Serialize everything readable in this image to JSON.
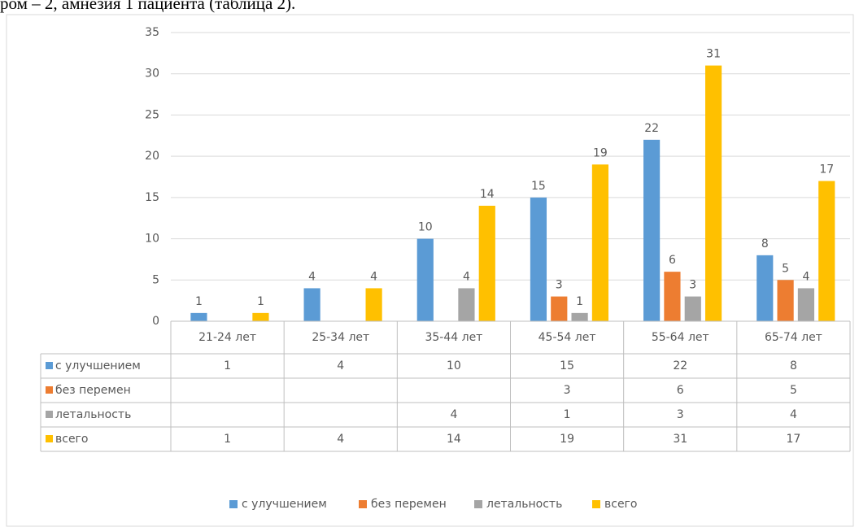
{
  "caption_fragment": "ром – 2, амнезия 1 пациента (таблица 2).",
  "chart_data": {
    "type": "bar",
    "categories": [
      "21-24 лет",
      "25-34 лет",
      "35-44 лет",
      "45-54 лет",
      "55-64 лет",
      "65-74 лет"
    ],
    "series": [
      {
        "name": "с улучшением",
        "color": "#5b9bd5",
        "values": [
          1,
          4,
          10,
          15,
          22,
          8
        ]
      },
      {
        "name": "без перемен",
        "color": "#ed7d31",
        "values": [
          null,
          null,
          null,
          3,
          6,
          5
        ]
      },
      {
        "name": "летальность",
        "color": "#a5a5a5",
        "values": [
          null,
          null,
          4,
          1,
          3,
          4
        ]
      },
      {
        "name": "всего",
        "color": "#ffc000",
        "values": [
          1,
          4,
          14,
          19,
          31,
          17
        ]
      }
    ],
    "ylim": [
      0,
      35
    ],
    "yticks": [
      0,
      5,
      10,
      15,
      20,
      25,
      30,
      35
    ],
    "grid": true,
    "data_table": true,
    "legend": "bottom"
  }
}
